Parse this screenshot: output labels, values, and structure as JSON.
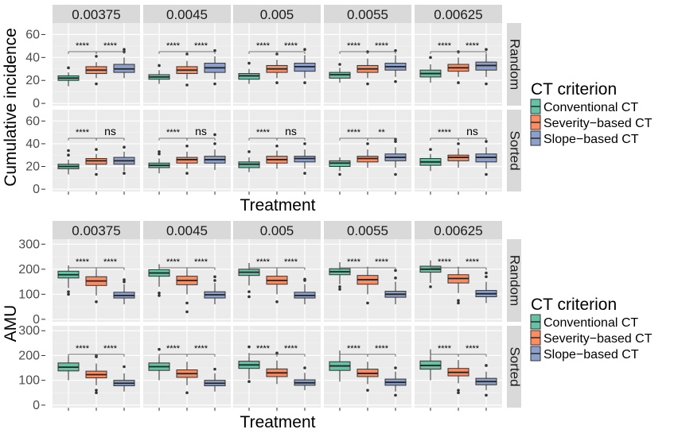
{
  "chart_data": [
    {
      "type": "boxplot",
      "ylabel": "Cumulative incidence",
      "xlabel": "Treatment",
      "ylim": [
        -2,
        70
      ],
      "yticks": [
        0,
        20,
        40,
        60
      ],
      "column_labels": [
        "0.00375",
        "0.0045",
        "0.005",
        "0.0055",
        "0.00625"
      ],
      "row_labels": [
        "Random",
        "Sorted"
      ],
      "legend": {
        "title": "CT criterion",
        "entries": [
          "Conventional CT",
          "Severity−based CT",
          "Slope−based CT"
        ],
        "colors": [
          "#66c2a5",
          "#fc8d62",
          "#8da0cb"
        ]
      },
      "panels": [
        {
          "row": "Random",
          "col": "0.00375",
          "boxes": [
            {
              "q1": 20,
              "med": 22,
              "q3": 24,
              "lo": 15,
              "hi": 27,
              "out": [
                31
              ]
            },
            {
              "q1": 26,
              "med": 29,
              "q3": 32,
              "lo": 22,
              "hi": 36,
              "out": [
                41,
                17
              ]
            },
            {
              "q1": 27,
              "med": 30,
              "q3": 34,
              "lo": 22,
              "hi": 40,
              "out": [
                45,
                47
              ]
            }
          ],
          "sig": [
            "****",
            "****"
          ]
        },
        {
          "row": "Random",
          "col": "0.0045",
          "boxes": [
            {
              "q1": 21,
              "med": 23,
              "q3": 25,
              "lo": 17,
              "hi": 29,
              "out": [
                33
              ]
            },
            {
              "q1": 26,
              "med": 29,
              "q3": 32,
              "lo": 21,
              "hi": 37,
              "out": [
                43,
                16
              ]
            },
            {
              "q1": 27,
              "med": 31,
              "q3": 35,
              "lo": 21,
              "hi": 41,
              "out": [
                46,
                17
              ]
            }
          ],
          "sig": [
            "****",
            "****"
          ]
        },
        {
          "row": "Random",
          "col": "0.005",
          "boxes": [
            {
              "q1": 21,
              "med": 24,
              "q3": 26,
              "lo": 17,
              "hi": 30,
              "out": [
                35
              ]
            },
            {
              "q1": 27,
              "med": 30,
              "q3": 33,
              "lo": 22,
              "hi": 38,
              "out": [
                43,
                18
              ]
            },
            {
              "q1": 28,
              "med": 32,
              "q3": 35,
              "lo": 22,
              "hi": 42,
              "out": [
                47,
                18
              ]
            }
          ],
          "sig": [
            "****",
            "****"
          ]
        },
        {
          "row": "Random",
          "col": "0.0055",
          "boxes": [
            {
              "q1": 22,
              "med": 25,
              "q3": 27,
              "lo": 18,
              "hi": 31,
              "out": [
                34
              ]
            },
            {
              "q1": 27,
              "med": 30,
              "q3": 33,
              "lo": 22,
              "hi": 39,
              "out": [
                45,
                17
              ]
            },
            {
              "q1": 29,
              "med": 32,
              "q3": 35,
              "lo": 23,
              "hi": 42,
              "out": [
                46,
                19
              ]
            }
          ],
          "sig": [
            "****",
            "****"
          ]
        },
        {
          "row": "Random",
          "col": "0.00625",
          "boxes": [
            {
              "q1": 23,
              "med": 26,
              "q3": 29,
              "lo": 18,
              "hi": 34,
              "out": [
                40
              ]
            },
            {
              "q1": 28,
              "med": 31,
              "q3": 34,
              "lo": 23,
              "hi": 40,
              "out": [
                45,
                18
              ]
            },
            {
              "q1": 29,
              "med": 33,
              "q3": 36,
              "lo": 23,
              "hi": 43,
              "out": [
                47,
                17
              ]
            }
          ],
          "sig": [
            "****",
            "****"
          ]
        },
        {
          "row": "Sorted",
          "col": "0.00375",
          "boxes": [
            {
              "q1": 18,
              "med": 20,
              "q3": 22,
              "lo": 13,
              "hi": 26,
              "out": [
                30,
                34
              ]
            },
            {
              "q1": 22,
              "med": 25,
              "q3": 27,
              "lo": 17,
              "hi": 31,
              "out": [
                35,
                13
              ]
            },
            {
              "q1": 22,
              "med": 25,
              "q3": 28,
              "lo": 16,
              "hi": 33,
              "out": [
                37,
                14
              ]
            }
          ],
          "sig": [
            "****",
            "ns"
          ]
        },
        {
          "row": "Sorted",
          "col": "0.0045",
          "boxes": [
            {
              "q1": 19,
              "med": 21,
              "q3": 23,
              "lo": 14,
              "hi": 27,
              "out": [
                31,
                33
              ]
            },
            {
              "q1": 23,
              "med": 26,
              "q3": 28,
              "lo": 18,
              "hi": 33,
              "out": [
                38,
                14
              ]
            },
            {
              "q1": 23,
              "med": 26,
              "q3": 29,
              "lo": 17,
              "hi": 35,
              "out": [
                40,
                48
              ]
            }
          ],
          "sig": [
            "****",
            "ns"
          ]
        },
        {
          "row": "Sorted",
          "col": "0.005",
          "boxes": [
            {
              "q1": 19,
              "med": 22,
              "q3": 24,
              "lo": 15,
              "hi": 28,
              "out": [
                33
              ]
            },
            {
              "q1": 23,
              "med": 26,
              "q3": 29,
              "lo": 18,
              "hi": 34,
              "out": [
                38
              ]
            },
            {
              "q1": 24,
              "med": 27,
              "q3": 29,
              "lo": 18,
              "hi": 35,
              "out": [
                40,
                14
              ]
            }
          ],
          "sig": [
            "****",
            "ns"
          ]
        },
        {
          "row": "Sorted",
          "col": "0.0055",
          "boxes": [
            {
              "q1": 20,
              "med": 23,
              "q3": 25,
              "lo": 16,
              "hi": 28,
              "out": [
                13
              ]
            },
            {
              "q1": 24,
              "med": 27,
              "q3": 29,
              "lo": 19,
              "hi": 35,
              "out": [
                40
              ]
            },
            {
              "q1": 25,
              "med": 28,
              "q3": 31,
              "lo": 19,
              "hi": 37,
              "out": [
                42,
                44,
                13
              ]
            }
          ],
          "sig": [
            "****",
            "**"
          ]
        },
        {
          "row": "Sorted",
          "col": "0.00625",
          "boxes": [
            {
              "q1": 21,
              "med": 24,
              "q3": 27,
              "lo": 16,
              "hi": 31,
              "out": [
                35
              ]
            },
            {
              "q1": 25,
              "med": 28,
              "q3": 30,
              "lo": 19,
              "hi": 36,
              "out": [
                40
              ]
            },
            {
              "q1": 24,
              "med": 28,
              "q3": 31,
              "lo": 18,
              "hi": 37,
              "out": [
                42,
                13
              ]
            }
          ],
          "sig": [
            "****",
            "ns"
          ]
        }
      ]
    },
    {
      "type": "boxplot",
      "ylabel": "AMU",
      "xlabel": "Treatment",
      "ylim": [
        -10,
        320
      ],
      "yticks": [
        0,
        100,
        200,
        300
      ],
      "column_labels": [
        "0.00375",
        "0.0045",
        "0.005",
        "0.0055",
        "0.00625"
      ],
      "row_labels": [
        "Random",
        "Sorted"
      ],
      "legend": {
        "title": "CT criterion",
        "entries": [
          "Conventional CT",
          "Severity−based CT",
          "Slope−based CT"
        ],
        "colors": [
          "#66c2a5",
          "#fc8d62",
          "#8da0cb"
        ]
      },
      "panels": [
        {
          "row": "Random",
          "col": "0.00375",
          "boxes": [
            {
              "q1": 165,
              "med": 178,
              "q3": 192,
              "lo": 125,
              "hi": 215,
              "out": [
                110,
                100
              ]
            },
            {
              "q1": 135,
              "med": 153,
              "q3": 170,
              "lo": 95,
              "hi": 200,
              "out": [
                70
              ]
            },
            {
              "q1": 85,
              "med": 95,
              "q3": 108,
              "lo": 60,
              "hi": 140,
              "out": [
                150,
                158
              ]
            }
          ],
          "sig": [
            "****",
            "****"
          ]
        },
        {
          "row": "Random",
          "col": "0.0045",
          "boxes": [
            {
              "q1": 172,
              "med": 185,
              "q3": 198,
              "lo": 130,
              "hi": 220,
              "out": [
                105,
                95
              ]
            },
            {
              "q1": 138,
              "med": 155,
              "q3": 172,
              "lo": 100,
              "hi": 205,
              "out": [
                65,
                30
              ]
            },
            {
              "q1": 85,
              "med": 98,
              "q3": 110,
              "lo": 60,
              "hi": 145,
              "out": [
                155,
                170
              ]
            }
          ],
          "sig": [
            "****",
            "****"
          ]
        },
        {
          "row": "Random",
          "col": "0.005",
          "boxes": [
            {
              "q1": 175,
              "med": 188,
              "q3": 200,
              "lo": 135,
              "hi": 225,
              "out": [
                110,
                90
              ]
            },
            {
              "q1": 140,
              "med": 155,
              "q3": 172,
              "lo": 100,
              "hi": 205,
              "out": [
                70
              ]
            },
            {
              "q1": 85,
              "med": 95,
              "q3": 108,
              "lo": 60,
              "hi": 140,
              "out": [
                155,
                160
              ]
            }
          ],
          "sig": [
            "****",
            "****"
          ]
        },
        {
          "row": "Random",
          "col": "0.0055",
          "boxes": [
            {
              "q1": 178,
              "med": 190,
              "q3": 202,
              "lo": 140,
              "hi": 228,
              "out": [
                120,
                130
              ]
            },
            {
              "q1": 140,
              "med": 158,
              "q3": 175,
              "lo": 100,
              "hi": 210,
              "out": [
                65
              ]
            },
            {
              "q1": 88,
              "med": 100,
              "q3": 112,
              "lo": 60,
              "hi": 150,
              "out": [
                165,
                195
              ]
            }
          ],
          "sig": [
            "****",
            "****"
          ]
        },
        {
          "row": "Random",
          "col": "0.00625",
          "boxes": [
            {
              "q1": 188,
              "med": 200,
              "q3": 212,
              "lo": 145,
              "hi": 235,
              "out": [
                130
              ]
            },
            {
              "q1": 145,
              "med": 163,
              "q3": 178,
              "lo": 105,
              "hi": 210,
              "out": [
                75,
                65
              ]
            },
            {
              "q1": 90,
              "med": 102,
              "q3": 115,
              "lo": 65,
              "hi": 150,
              "out": [
                170,
                185
              ]
            }
          ],
          "sig": [
            "****",
            "****"
          ]
        },
        {
          "row": "Sorted",
          "col": "0.00375",
          "boxes": [
            {
              "q1": 138,
              "med": 153,
              "q3": 170,
              "lo": 100,
              "hi": 200,
              "out": []
            },
            {
              "q1": 110,
              "med": 123,
              "q3": 137,
              "lo": 80,
              "hi": 168,
              "out": [
                200,
                60,
                50,
                195
              ]
            },
            {
              "q1": 78,
              "med": 88,
              "q3": 100,
              "lo": 55,
              "hi": 128,
              "out": [
                155
              ]
            }
          ],
          "sig": [
            "****",
            "****"
          ]
        },
        {
          "row": "Sorted",
          "col": "0.0045",
          "boxes": [
            {
              "q1": 140,
              "med": 155,
              "q3": 170,
              "lo": 100,
              "hi": 200,
              "out": [
                225
              ]
            },
            {
              "q1": 112,
              "med": 127,
              "q3": 142,
              "lo": 80,
              "hi": 175,
              "out": [
                50
              ]
            },
            {
              "q1": 78,
              "med": 88,
              "q3": 100,
              "lo": 55,
              "hi": 128,
              "out": [
                145
              ]
            }
          ],
          "sig": [
            "****",
            "****"
          ]
        },
        {
          "row": "Sorted",
          "col": "0.005",
          "boxes": [
            {
              "q1": 148,
              "med": 162,
              "q3": 177,
              "lo": 105,
              "hi": 210,
              "out": [
                235,
                95
              ]
            },
            {
              "q1": 115,
              "med": 130,
              "q3": 146,
              "lo": 85,
              "hi": 180,
              "out": [
                210
              ]
            },
            {
              "q1": 80,
              "med": 90,
              "q3": 102,
              "lo": 60,
              "hi": 130,
              "out": [
                150
              ]
            }
          ],
          "sig": [
            "****",
            "****"
          ]
        },
        {
          "row": "Sorted",
          "col": "0.0055",
          "boxes": [
            {
              "q1": 140,
              "med": 158,
              "q3": 175,
              "lo": 95,
              "hi": 220,
              "out": []
            },
            {
              "q1": 115,
              "med": 128,
              "q3": 145,
              "lo": 85,
              "hi": 175,
              "out": [
                60
              ]
            },
            {
              "q1": 80,
              "med": 92,
              "q3": 105,
              "lo": 55,
              "hi": 135,
              "out": [
                150,
                40
              ]
            }
          ],
          "sig": [
            "****",
            "****"
          ]
        },
        {
          "row": "Sorted",
          "col": "0.00625",
          "boxes": [
            {
              "q1": 145,
              "med": 160,
              "q3": 178,
              "lo": 100,
              "hi": 225,
              "out": []
            },
            {
              "q1": 118,
              "med": 132,
              "q3": 148,
              "lo": 88,
              "hi": 182,
              "out": [
                60,
                50
              ]
            },
            {
              "q1": 82,
              "med": 95,
              "q3": 108,
              "lo": 60,
              "hi": 135,
              "out": [
                160,
                40
              ]
            }
          ],
          "sig": [
            "****",
            "****"
          ]
        }
      ]
    }
  ]
}
